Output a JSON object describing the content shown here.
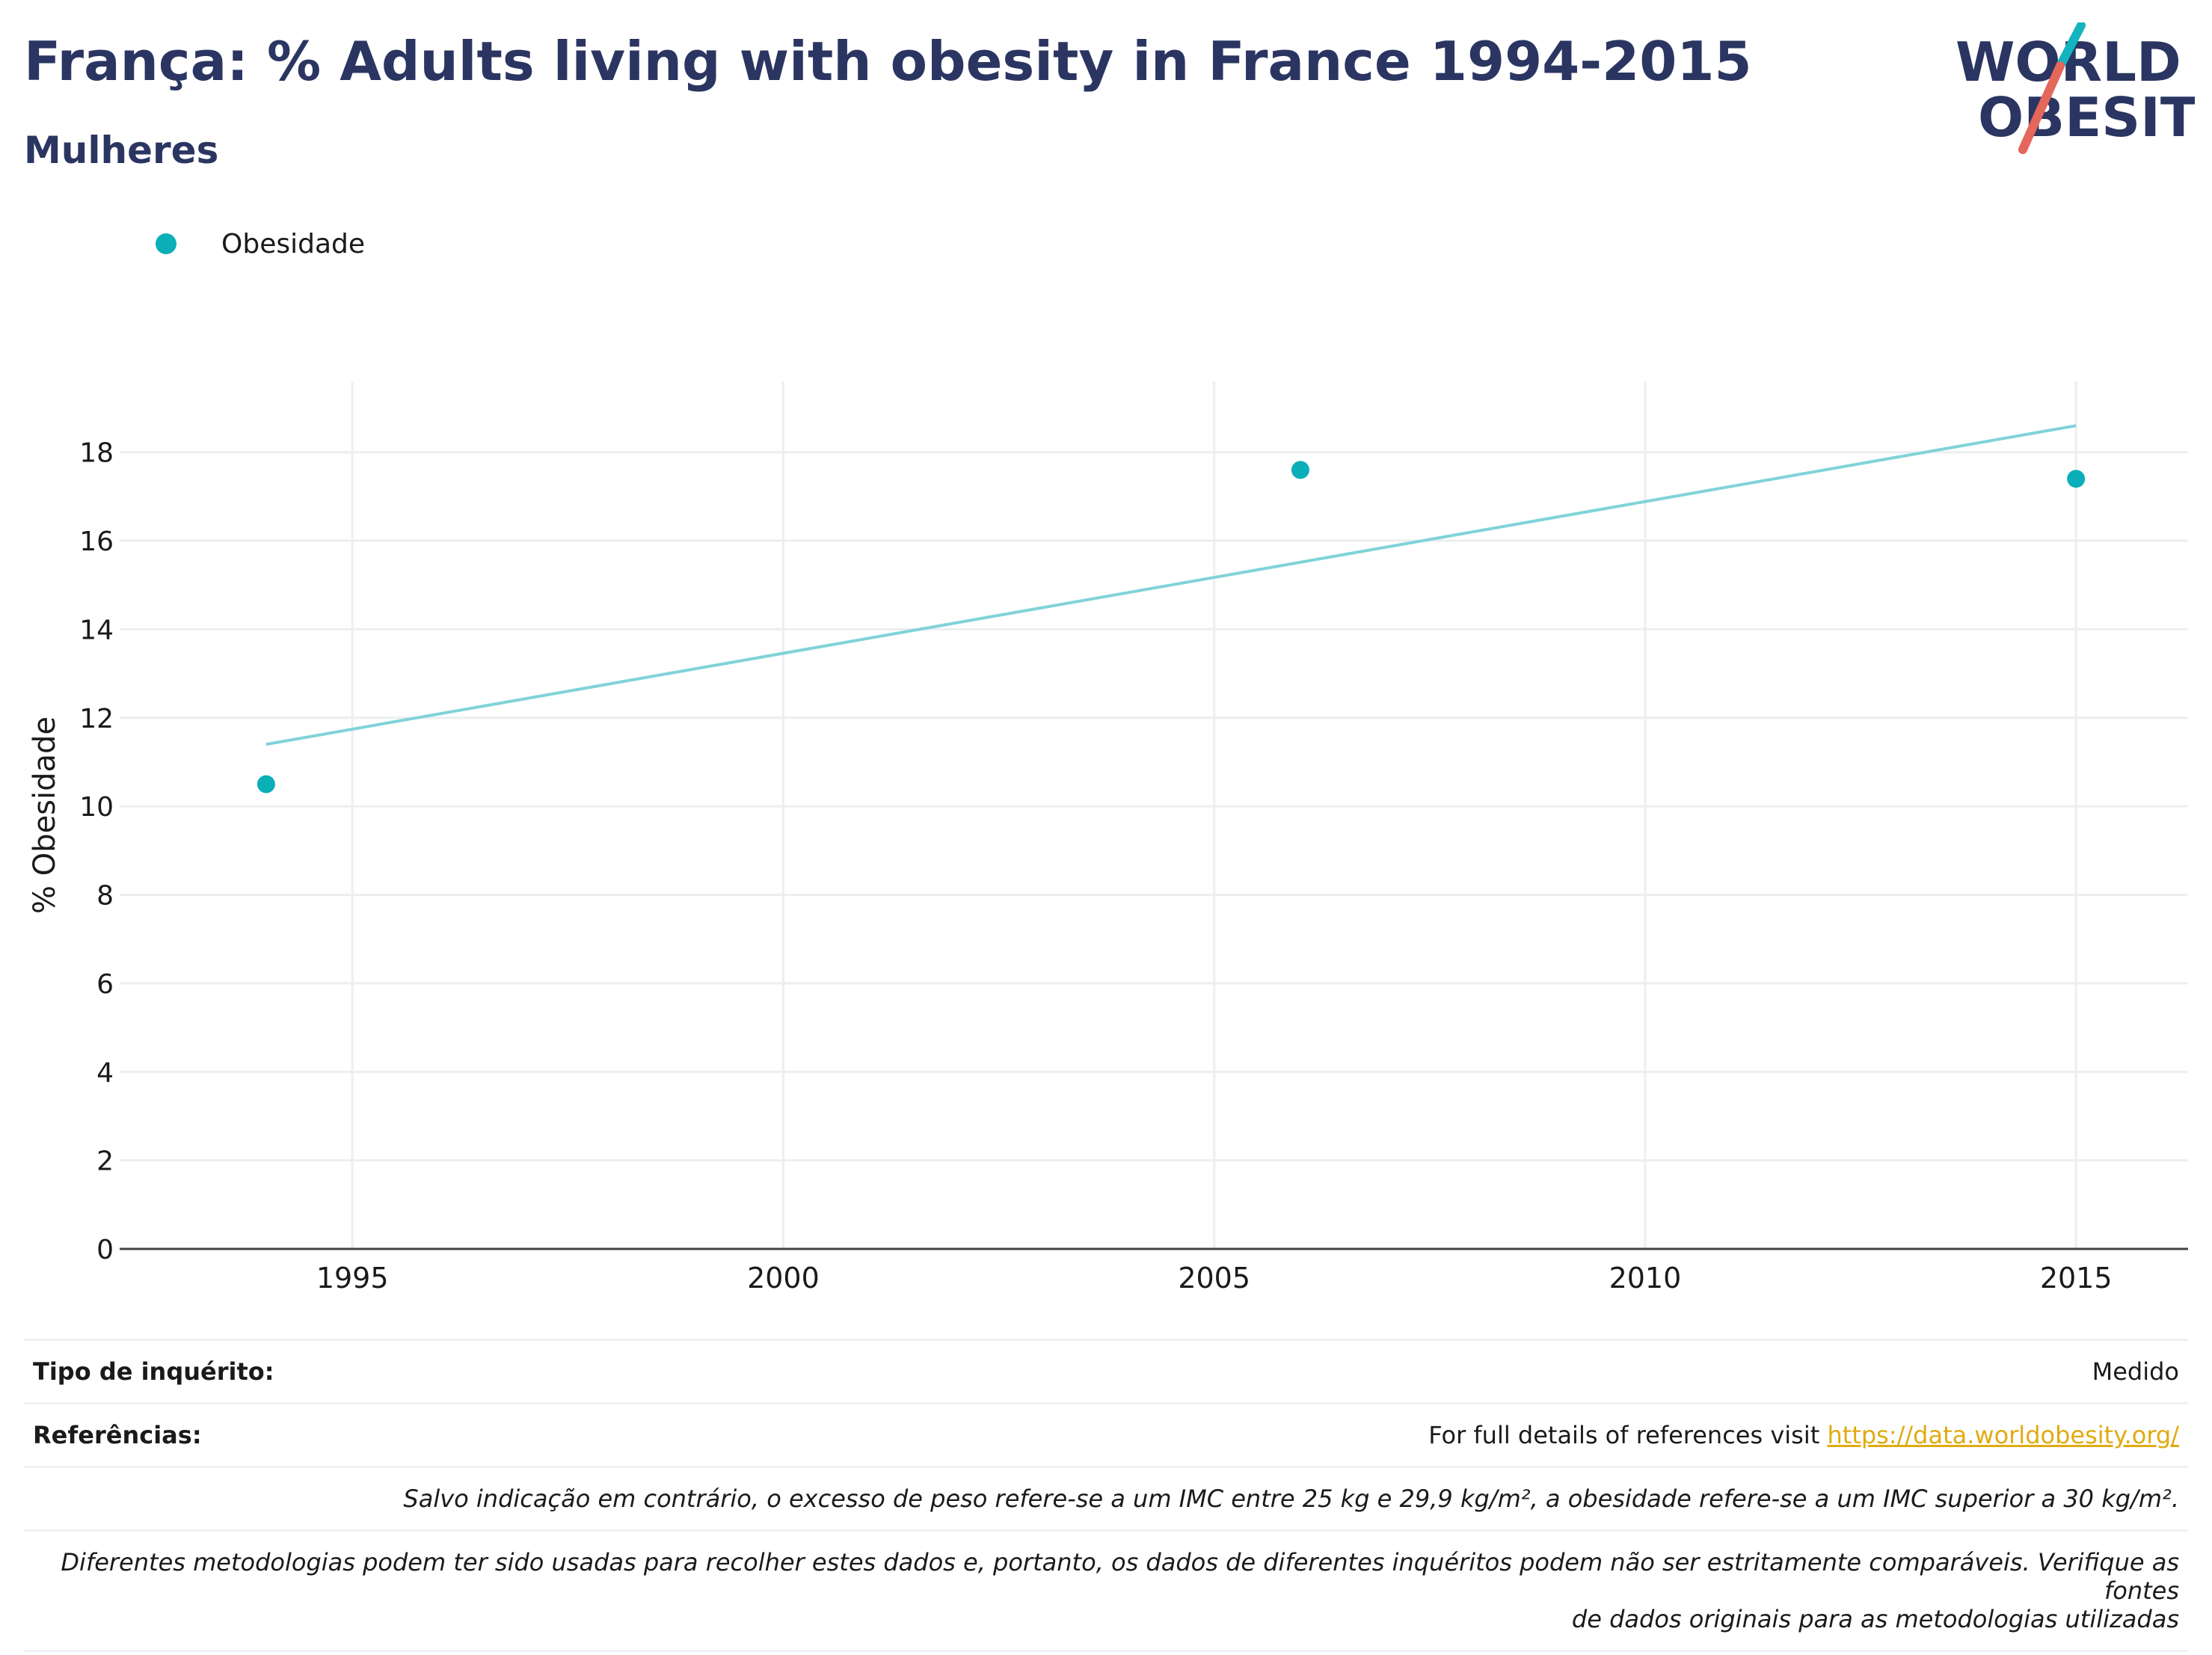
{
  "title": "França: % Adults living with obesity in France 1994-2015",
  "subtitle": "Mulheres",
  "logo": {
    "line1": "WORLD",
    "line2": "OBESITY",
    "colors": {
      "text": "#2b3561",
      "slash_top": "#12b5be",
      "slash_bottom": "#e5665a"
    }
  },
  "legend": {
    "label": "Obesidade",
    "color": "#0aafb8"
  },
  "chart_data": {
    "type": "scatter",
    "series": [
      {
        "name": "Obesidade",
        "x": [
          1994,
          2006,
          2015
        ],
        "y": [
          10.5,
          17.6,
          17.4
        ],
        "color": "#0aafb8"
      }
    ],
    "trendline": {
      "x": [
        1994,
        2015
      ],
      "y": [
        11.4,
        18.6
      ],
      "color": "#7fd3d8"
    },
    "xlabel": "",
    "ylabel": "% Obesidade",
    "xlim": [
      1992.3,
      2016.3
    ],
    "ylim": [
      0,
      19.6
    ],
    "xticks": [
      1995,
      2000,
      2005,
      2010,
      2015
    ],
    "yticks": [
      0,
      2,
      4,
      6,
      8,
      10,
      12,
      14,
      16,
      18
    ],
    "grid": true
  },
  "footer": {
    "survey_key": "Tipo de inquérito:",
    "survey_value": "Medido",
    "refs_key": "Referências:",
    "refs_text": "For full details of references visit ",
    "refs_link": "https://data.worldobesity.org/",
    "note1": "Salvo indicação em contrário, o excesso de peso refere-se a um IMC entre 25 kg e 29,9 kg/m², a obesidade refere-se a um IMC superior a 30 kg/m².",
    "note2_line1": "Diferentes metodologias podem ter sido usadas para recolher estes dados e, portanto, os dados de diferentes inquéritos podem não ser estritamente comparáveis. Verifique as fontes",
    "note2_line2": "de dados originais para as metodologias utilizadas"
  }
}
